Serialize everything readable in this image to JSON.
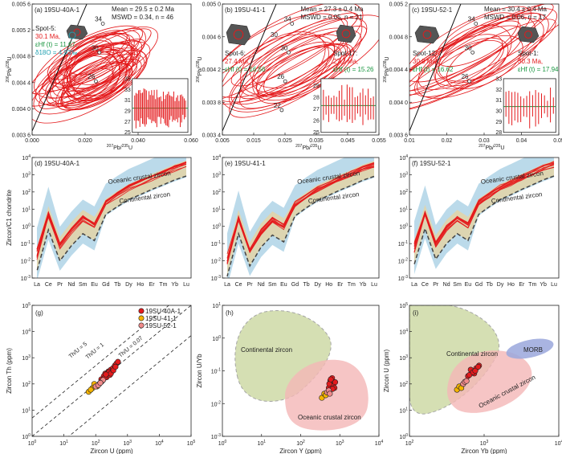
{
  "colors": {
    "red": "#e41a1c",
    "dark_red": "#b2182b",
    "green": "#1a9641",
    "teal": "#1f9fb0",
    "blue_field": "#9ecae1",
    "tan_field": "#e6d3a3",
    "olive_field": "#c7d59a",
    "pink_field": "#f4b6b6",
    "morb_field": "#9aa7dc",
    "orange_pt": "#f5b400",
    "pink_pt": "#f08a8a"
  },
  "chart_data": [
    {
      "panel": "a",
      "type": "scatter",
      "title": "(a) 19SU-40A-1",
      "xlabel": "207Pb/235U",
      "ylabel": "206Pb/238U",
      "xticks": [
        "0.000",
        "0.020",
        "0.040",
        "0.060"
      ],
      "yticks": [
        "0.003 6",
        "0.004 0",
        "0.004 4",
        "0.004 8",
        "0.005 2",
        "0.005 6"
      ],
      "xlim": [
        0,
        0.075
      ],
      "ylim": [
        0.0036,
        0.0056
      ],
      "concordia_labels": [
        "34",
        "30",
        "26"
      ],
      "stats": [
        "Mean = 29.5 ± 0.2 Ma",
        "MSWD = 0.34, n = 46"
      ],
      "spot": [
        "Spot-5:",
        "30.1 Ma,",
        "εHf (t) = 11.67,",
        "δ18O = 4.93‰"
      ],
      "inset_yticks": [
        "25",
        "27",
        "29",
        "31",
        "33",
        "35"
      ],
      "inset_ylim": [
        25,
        35
      ],
      "inset_mean": 29.5
    },
    {
      "panel": "b",
      "type": "scatter",
      "title": "(b) 19SU-41-1",
      "xlabel": "207Pb/235U",
      "ylabel": "206Pb/238U",
      "xticks": [
        "0.005",
        "0.015",
        "0.025",
        "0.035",
        "0.045",
        "0.055"
      ],
      "yticks": [
        "0.003 4",
        "0.003 8",
        "0.004 2",
        "0.004 6",
        "0.005 0"
      ],
      "xlim": [
        0.005,
        0.055
      ],
      "ylim": [
        0.0034,
        0.005
      ],
      "concordia_labels": [
        "34",
        "30",
        "26",
        "22"
      ],
      "stats": [
        "Mean = 27.3 ± 0.4 Ma",
        "MSWD = 0.05, n = 21"
      ],
      "spot_left": [
        "Spot-6:",
        "27.4 Ma,",
        "εHf (t) = 16.56"
      ],
      "spot_right": [
        "Spot-17:",
        "27.2 Ma,",
        "εHf (t) = 15.26"
      ],
      "inset_yticks": [
        "25",
        "26",
        "27",
        "28",
        "29"
      ],
      "inset_ylim": [
        25,
        29.6
      ],
      "inset_mean": 27.3
    },
    {
      "panel": "c",
      "type": "scatter",
      "title": "(c) 19SU-52-1",
      "xlabel": "207Pb/235U",
      "ylabel": "206Pb/238U",
      "xticks": [
        "0.01",
        "0.02",
        "0.03",
        "0.04",
        "0.05"
      ],
      "yticks": [
        "0.003 6",
        "0.004 0",
        "0.004 4",
        "0.004 8",
        "0.005 2"
      ],
      "xlim": [
        0.01,
        0.055
      ],
      "ylim": [
        0.0036,
        0.0054
      ],
      "concordia_labels": [
        "34",
        "30",
        "26"
      ],
      "stats": [
        "Mean = 30.4 ± 0.4 Ma",
        "MSWD = 0.06, n = 17"
      ],
      "spot_left": [
        "Spot-12:",
        "30.9 Ma,",
        "εHf (t) = 16.62"
      ],
      "spot_right": [
        "Spot-1:",
        "30.3 Ma,",
        "εHf (t) = 17.94"
      ],
      "inset_yticks": [
        "28",
        "29",
        "30",
        "31",
        "32",
        "33"
      ],
      "inset_ylim": [
        28,
        33
      ],
      "inset_mean": 30.4
    },
    {
      "panel": "d",
      "type": "line",
      "title": "(d) 19SU-40A-1",
      "ylabel": "Zircon/C1 chondrite",
      "log_y": true,
      "categories": [
        "La",
        "Ce",
        "Pr",
        "Nd",
        "Sm",
        "Eu",
        "Gd",
        "Tb",
        "Dy",
        "Ho",
        "Er",
        "Tm",
        "Yb",
        "Lu"
      ],
      "yticks": [
        "10-3",
        "10-2",
        "10-1",
        "100",
        "101",
        "102",
        "103",
        "104"
      ],
      "ylim": [
        0.001,
        10000
      ],
      "mean_pattern": [
        0.02,
        5,
        0.08,
        0.6,
        3,
        1.2,
        25,
        70,
        180,
        350,
        700,
        1300,
        2500,
        4200
      ],
      "labels": [
        "Oceanic crustal zircon",
        "Continental zircon"
      ]
    },
    {
      "panel": "e",
      "type": "line",
      "title": "(e) 19SU-41-1",
      "log_y": true,
      "categories": [
        "La",
        "Ce",
        "Pr",
        "Nd",
        "Sm",
        "Eu",
        "Gd",
        "Tb",
        "Dy",
        "Ho",
        "Er",
        "Tm",
        "Yb",
        "Lu"
      ],
      "yticks": [
        "10-3",
        "10-2",
        "10-1",
        "100",
        "101",
        "102",
        "103",
        "104"
      ],
      "ylim": [
        0.001,
        10000
      ],
      "mean_pattern": [
        0.01,
        3,
        0.04,
        0.5,
        2.5,
        1,
        20,
        60,
        160,
        320,
        650,
        1200,
        2400,
        4000
      ],
      "labels": [
        "Oceanic crustal zircon",
        "Continental zircon"
      ]
    },
    {
      "panel": "f",
      "type": "line",
      "title": "(f) 19SU-52-1",
      "log_y": true,
      "categories": [
        "La",
        "Ce",
        "Pr",
        "Nd",
        "Sm",
        "Eu",
        "Gd",
        "Tb",
        "Dy",
        "Ho",
        "Er",
        "Tm",
        "Yb",
        "Lu"
      ],
      "yticks": [
        "10-3",
        "10-2",
        "10-1",
        "100",
        "101",
        "102",
        "103",
        "104"
      ],
      "ylim": [
        0.001,
        10000
      ],
      "mean_pattern": [
        0.05,
        6,
        0.1,
        0.8,
        3,
        1.2,
        25,
        70,
        180,
        350,
        700,
        1300,
        2500,
        4200
      ],
      "labels": [
        "Oceanic crustal zircon",
        "Continental zircon"
      ]
    },
    {
      "panel": "g",
      "type": "scatter",
      "title": "(g)",
      "xlabel": "Zircon U (ppm)",
      "ylabel": "Zircon Th (ppm)",
      "log_x": true,
      "log_y": true,
      "xticks": [
        "100",
        "101",
        "102",
        "103",
        "104",
        "105"
      ],
      "yticks": [
        "100",
        "101",
        "102",
        "103",
        "104",
        "105"
      ],
      "xlim": [
        1,
        100000
      ],
      "ylim": [
        1,
        100000
      ],
      "lines": [
        {
          "label": "Th/U = 5",
          "ratio": 5
        },
        {
          "label": "Th/U = 1",
          "ratio": 1
        },
        {
          "label": "Th/U = 0.07",
          "ratio": 0.07
        }
      ],
      "legend": [
        "19SU-40A-1",
        "19SU-41-1",
        "19SU-52-1"
      ],
      "legend_position": "top-right",
      "series": [
        {
          "name": "19SU-40A-1",
          "points": [
            [
              150,
              150
            ],
            [
              200,
              250
            ],
            [
              250,
              300
            ],
            [
              300,
              350
            ],
            [
              180,
              200
            ],
            [
              220,
              180
            ],
            [
              350,
              400
            ],
            [
              400,
              500
            ],
            [
              280,
              220
            ],
            [
              160,
              130
            ],
            [
              240,
              260
            ],
            [
              320,
              300
            ],
            [
              450,
              600
            ],
            [
              500,
              700
            ],
            [
              260,
              280
            ],
            [
              190,
              170
            ],
            [
              300,
              250
            ],
            [
              360,
              330
            ],
            [
              420,
              450
            ],
            [
              210,
              230
            ]
          ]
        },
        {
          "name": "19SU-41-1",
          "points": [
            [
              60,
              50
            ],
            [
              80,
              70
            ],
            [
              100,
              90
            ],
            [
              70,
              60
            ],
            [
              90,
              100
            ],
            [
              110,
              80
            ]
          ]
        },
        {
          "name": "19SU-52-1",
          "points": [
            [
              100,
              80
            ],
            [
              130,
              100
            ],
            [
              150,
              120
            ],
            [
              120,
              90
            ],
            [
              170,
              140
            ],
            [
              140,
              110
            ]
          ]
        }
      ]
    },
    {
      "panel": "h",
      "type": "scatter",
      "title": "(h)",
      "xlabel": "Zircon Y (ppm)",
      "ylabel": "Zircon U/Yb",
      "log_x": true,
      "log_y": true,
      "xticks": [
        "100",
        "101",
        "102",
        "103",
        "104"
      ],
      "yticks": [
        "10-3",
        "10-2",
        "10-1",
        "100",
        "101"
      ],
      "xlim": [
        1,
        100000
      ],
      "ylim": [
        0.001,
        10
      ],
      "field_labels": [
        "Continental zircon",
        "Oceanic crustal zircon"
      ],
      "series": [
        {
          "name": "19SU-40A-1",
          "points": [
            [
              2500,
              0.03
            ],
            [
              3000,
              0.04
            ],
            [
              3500,
              0.035
            ],
            [
              2800,
              0.05
            ],
            [
              4000,
              0.045
            ],
            [
              3200,
              0.06
            ],
            [
              2600,
              0.04
            ],
            [
              3800,
              0.03
            ],
            [
              3300,
              0.028
            ],
            [
              2900,
              0.055
            ]
          ]
        },
        {
          "name": "19SU-41-1",
          "points": [
            [
              1500,
              0.015
            ],
            [
              1800,
              0.02
            ],
            [
              2000,
              0.018
            ]
          ]
        },
        {
          "name": "19SU-52-1",
          "points": [
            [
              2200,
              0.022
            ],
            [
              2500,
              0.025
            ],
            [
              2700,
              0.02
            ]
          ]
        }
      ]
    },
    {
      "panel": "i",
      "type": "scatter",
      "title": "(i)",
      "xlabel": "Zircon Yb (ppm)",
      "ylabel": "Zircon U (ppm)",
      "log_x": true,
      "log_y": true,
      "xticks": [
        "102",
        "103",
        "104"
      ],
      "yticks": [
        "100",
        "101",
        "102",
        "103",
        "104",
        "105"
      ],
      "xlim": [
        100,
        100000
      ],
      "ylim": [
        1,
        100000
      ],
      "field_labels": [
        "Continental zircon",
        "MORB",
        "Oceanic crustal zircon"
      ],
      "series": [
        {
          "name": "19SU-40A-1",
          "points": [
            [
              1500,
              200
            ],
            [
              1800,
              300
            ],
            [
              2000,
              250
            ],
            [
              1700,
              350
            ],
            [
              2200,
              400
            ],
            [
              1600,
              220
            ],
            [
              2500,
              500
            ],
            [
              1900,
              280
            ],
            [
              2100,
              320
            ],
            [
              2400,
              450
            ]
          ]
        },
        {
          "name": "19SU-41-1",
          "points": [
            [
              900,
              60
            ],
            [
              1000,
              80
            ],
            [
              1100,
              70
            ]
          ]
        },
        {
          "name": "19SU-52-1",
          "points": [
            [
              1200,
              100
            ],
            [
              1300,
              120
            ],
            [
              1400,
              130
            ]
          ]
        }
      ]
    }
  ]
}
